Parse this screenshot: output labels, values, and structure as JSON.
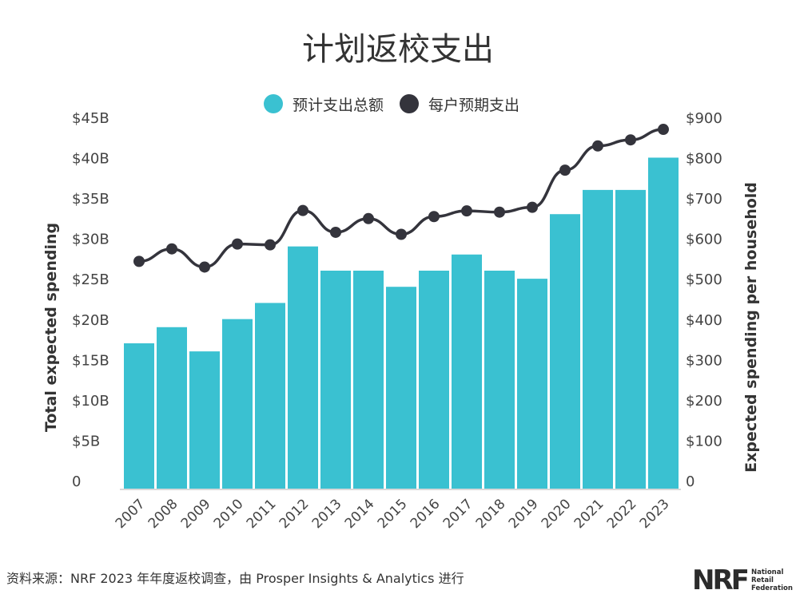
{
  "chart_data": {
    "type": "bar",
    "title": "计划返校支出",
    "categories": [
      "2007",
      "2008",
      "2009",
      "2010",
      "2011",
      "2012",
      "2013",
      "2014",
      "2015",
      "2016",
      "2017",
      "2018",
      "2019",
      "2020",
      "2021",
      "2022",
      "2023"
    ],
    "series": [
      {
        "name": "预计支出总额",
        "type": "bar",
        "axis": "left",
        "color": "#3ac1d1",
        "values": [
          18,
          20,
          17,
          21,
          23,
          30,
          27,
          27,
          25,
          27,
          29,
          27,
          26,
          34,
          37,
          37,
          41
        ]
      },
      {
        "name": "每户预期支出",
        "type": "line",
        "axis": "right",
        "color": "#34343c",
        "values": [
          563,
          594,
          549,
          606,
          604,
          689,
          635,
          669,
          630,
          674,
          688,
          685,
          697,
          789,
          849,
          864,
          890
        ]
      }
    ],
    "ylabel": "Total expected spending",
    "y2label": "Expected spending per household",
    "ylim": [
      0,
      45
    ],
    "y2lim": [
      0,
      900
    ],
    "yticks": [
      "0",
      "$5B",
      "$10B",
      "$15B",
      "$20B",
      "$25B",
      "$30B",
      "$35B",
      "$40B",
      "$45B"
    ],
    "y2ticks": [
      "0",
      "$100",
      "$200",
      "$300",
      "$400",
      "$500",
      "$600",
      "$700",
      "$800",
      "$900"
    ],
    "legend_placement": "top-center",
    "grid": false
  },
  "footer": {
    "source": "资料来源：NRF 2023 年年度返校调查，由 Prosper Insights & Analytics 进行",
    "logo_text": "NRF",
    "logo_subtext": [
      "National",
      "Retail",
      "Federation"
    ]
  }
}
